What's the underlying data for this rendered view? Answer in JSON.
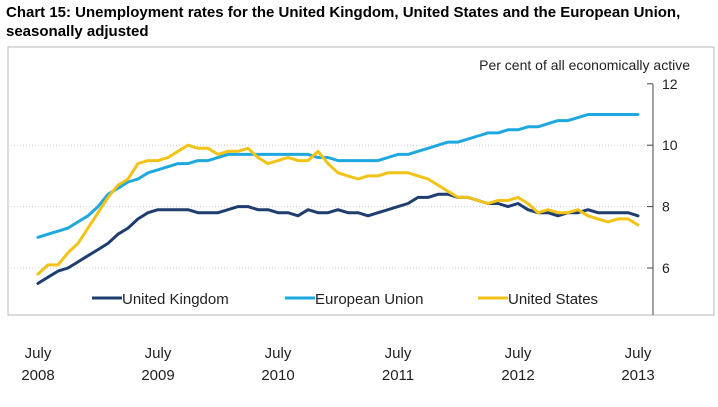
{
  "title": "Chart 15: Unemployment rates for the United Kingdom, United States and the European Union, seasonally adjusted",
  "chart_data": {
    "type": "line",
    "title": "Chart 15: Unemployment rates for the United Kingdom, United States and the European Union, seasonally adjusted",
    "ylabel": "Per cent of all economically active",
    "xlabel": "",
    "ylim": [
      4.5,
      12
    ],
    "yticks": [
      6,
      8,
      10,
      12
    ],
    "x_start_month": "2008-07",
    "x_tick_labels": [
      [
        "July",
        "2008"
      ],
      [
        "July",
        "2009"
      ],
      [
        "July",
        "2010"
      ],
      [
        "July",
        "2011"
      ],
      [
        "July",
        "2012"
      ],
      [
        "July",
        "2013"
      ]
    ],
    "grid": "horizontal",
    "legend_position": "bottom-inside",
    "series": [
      {
        "name": "United Kingdom",
        "color": "#1f3d6e",
        "values": [
          5.5,
          5.7,
          5.9,
          6.0,
          6.2,
          6.4,
          6.6,
          6.8,
          7.1,
          7.3,
          7.6,
          7.8,
          7.9,
          7.9,
          7.9,
          7.9,
          7.8,
          7.8,
          7.8,
          7.9,
          8.0,
          8.0,
          7.9,
          7.9,
          7.8,
          7.8,
          7.7,
          7.9,
          7.8,
          7.8,
          7.9,
          7.8,
          7.8,
          7.7,
          7.8,
          7.9,
          8.0,
          8.1,
          8.3,
          8.3,
          8.4,
          8.4,
          8.3,
          8.3,
          8.2,
          8.1,
          8.1,
          8.0,
          8.1,
          7.9,
          7.8,
          7.8,
          7.7,
          7.8,
          7.8,
          7.9,
          7.8,
          7.8,
          7.8,
          7.8,
          7.7
        ]
      },
      {
        "name": "European Union",
        "color": "#1ea8e0",
        "values": [
          7.0,
          7.1,
          7.2,
          7.3,
          7.5,
          7.7,
          8.0,
          8.4,
          8.6,
          8.8,
          8.9,
          9.1,
          9.2,
          9.3,
          9.4,
          9.4,
          9.5,
          9.5,
          9.6,
          9.7,
          9.7,
          9.7,
          9.7,
          9.7,
          9.7,
          9.7,
          9.7,
          9.7,
          9.6,
          9.6,
          9.5,
          9.5,
          9.5,
          9.5,
          9.5,
          9.6,
          9.7,
          9.7,
          9.8,
          9.9,
          10.0,
          10.1,
          10.1,
          10.2,
          10.3,
          10.4,
          10.4,
          10.5,
          10.5,
          10.6,
          10.6,
          10.7,
          10.8,
          10.8,
          10.9,
          11.0,
          11.0,
          11.0,
          11.0,
          11.0,
          11.0
        ]
      },
      {
        "name": "United States",
        "color": "#f2c316",
        "values": [
          5.8,
          6.1,
          6.1,
          6.5,
          6.8,
          7.3,
          7.8,
          8.3,
          8.7,
          8.9,
          9.4,
          9.5,
          9.5,
          9.6,
          9.8,
          10.0,
          9.9,
          9.9,
          9.7,
          9.8,
          9.8,
          9.9,
          9.6,
          9.4,
          9.5,
          9.6,
          9.5,
          9.5,
          9.8,
          9.4,
          9.1,
          9.0,
          8.9,
          9.0,
          9.0,
          9.1,
          9.1,
          9.1,
          9.0,
          8.9,
          8.7,
          8.5,
          8.3,
          8.3,
          8.2,
          8.1,
          8.2,
          8.2,
          8.3,
          8.1,
          7.8,
          7.9,
          7.8,
          7.8,
          7.9,
          7.7,
          7.6,
          7.5,
          7.6,
          7.6,
          7.4
        ]
      }
    ]
  }
}
